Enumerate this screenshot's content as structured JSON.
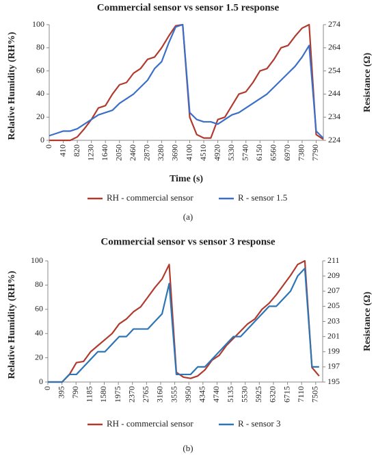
{
  "chart_data": [
    {
      "type": "line",
      "title": "Commercial sensor vs sensor 1.5 response",
      "xlabel": "Time (s)",
      "ylabel": "Relative Humidity (RH%)",
      "y2label": "Resistance (Ω)",
      "caption": "(a)",
      "x": [
        0,
        205,
        410,
        615,
        820,
        1025,
        1230,
        1435,
        1640,
        1845,
        2050,
        2255,
        2460,
        2665,
        2870,
        3075,
        3280,
        3485,
        3690,
        3895,
        4100,
        4305,
        4510,
        4715,
        4920,
        5125,
        5330,
        5535,
        5740,
        5945,
        6150,
        6355,
        6560,
        6765,
        6970,
        7175,
        7380,
        7585,
        7790,
        7995
      ],
      "xlim": [
        0,
        8000
      ],
      "xticks": [
        0,
        410,
        820,
        1230,
        1640,
        2050,
        2460,
        2870,
        3280,
        3690,
        4100,
        4510,
        4920,
        5330,
        5740,
        6150,
        6560,
        6970,
        7380,
        7790
      ],
      "ylim": [
        0,
        100
      ],
      "yticks": [
        0,
        20,
        40,
        60,
        80,
        100
      ],
      "y2lim": [
        224,
        274
      ],
      "y2ticks": [
        224,
        234,
        244,
        254,
        264,
        274
      ],
      "grid": false,
      "series": [
        {
          "name": "RH - commercial sensor",
          "color": "#b03a2e",
          "values": [
            0,
            0,
            0,
            0,
            3,
            10,
            18,
            28,
            30,
            40,
            48,
            50,
            58,
            62,
            70,
            72,
            80,
            90,
            99,
            100,
            20,
            5,
            2,
            2,
            18,
            20,
            30,
            40,
            42,
            50,
            60,
            62,
            70,
            80,
            82,
            90,
            97,
            100,
            5,
            1
          ]
        },
        {
          "name": "R - sensor 1.5",
          "color": "#3a6fc8",
          "axis": "y2",
          "values": [
            226,
            227,
            228,
            228,
            229,
            231,
            233,
            235,
            236,
            237,
            240,
            242,
            244,
            247,
            250,
            255,
            258,
            266,
            273,
            274,
            236,
            233,
            232,
            232,
            231,
            233,
            235,
            236,
            238,
            240,
            242,
            244,
            247,
            250,
            253,
            256,
            260,
            265,
            228,
            225
          ]
        }
      ]
    },
    {
      "type": "line",
      "title": "Commercial sensor vs sensor 3 response",
      "ylabel": "Relative Humidity (RH%)",
      "y2label": "Resistance (Ω)",
      "caption": "(b)",
      "x": [
        0,
        200,
        400,
        600,
        800,
        1000,
        1200,
        1400,
        1600,
        1800,
        2000,
        2200,
        2400,
        2600,
        2800,
        3000,
        3200,
        3400,
        3600,
        3800,
        4000,
        4200,
        4400,
        4600,
        4800,
        5000,
        5200,
        5400,
        5600,
        5800,
        6000,
        6200,
        6400,
        6600,
        6800,
        7000,
        7200,
        7400,
        7600
      ],
      "xlim": [
        0,
        7700
      ],
      "xticks": [
        0,
        395,
        790,
        1185,
        1580,
        1975,
        2370,
        2765,
        3160,
        3555,
        3950,
        4345,
        4740,
        5135,
        5530,
        5925,
        6320,
        6715,
        7110,
        7505
      ],
      "ylim": [
        0,
        100
      ],
      "yticks": [
        0,
        20,
        40,
        60,
        80,
        100
      ],
      "y2lim": [
        195,
        211
      ],
      "y2ticks": [
        195,
        197,
        199,
        201,
        203,
        205,
        207,
        209,
        211
      ],
      "grid": false,
      "series": [
        {
          "name": "RH - commercial sensor",
          "color": "#b03a2e",
          "values": [
            0,
            0,
            0,
            6,
            16,
            17,
            25,
            30,
            35,
            40,
            48,
            52,
            58,
            62,
            70,
            78,
            85,
            97,
            8,
            4,
            3,
            5,
            10,
            18,
            22,
            30,
            36,
            42,
            48,
            52,
            60,
            65,
            72,
            80,
            88,
            97,
            100,
            12,
            5
          ]
        },
        {
          "name": "R - sensor 3",
          "color": "#2e75b6",
          "axis": "y2",
          "values": [
            195,
            195,
            195,
            196,
            196,
            197,
            198,
            199,
            199,
            200,
            201,
            201,
            202,
            202,
            202,
            203,
            204,
            208,
            196,
            196,
            196,
            197,
            197,
            198,
            199,
            200,
            201,
            201,
            202,
            203,
            204,
            205,
            205,
            206,
            207,
            209,
            210,
            197,
            197
          ]
        }
      ]
    }
  ]
}
